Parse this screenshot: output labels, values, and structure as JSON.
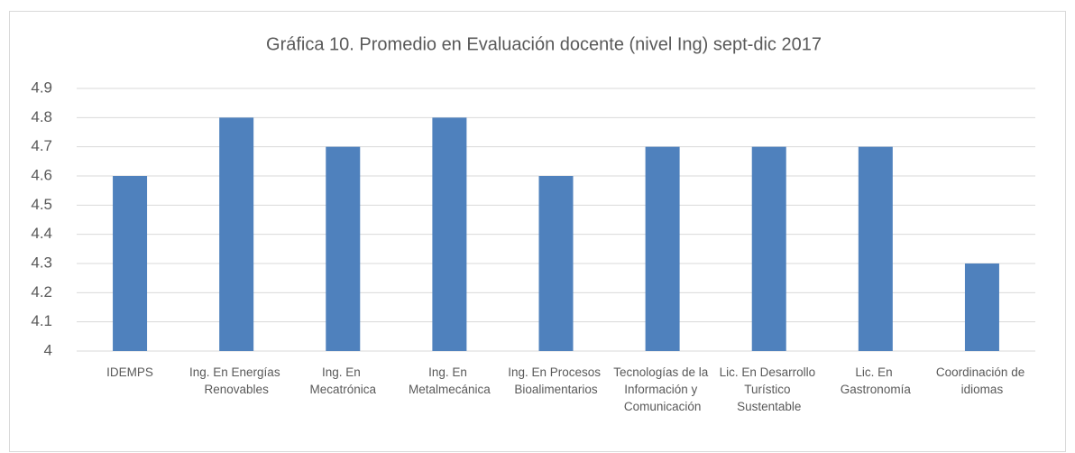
{
  "chart_data": {
    "type": "bar",
    "title": "Gráfica 10. Promedio en Evaluación docente (nivel Ing) sept-dic 2017",
    "categories": [
      "IDEMPS",
      "Ing. En Energías Renovables",
      "Ing. En Mecatrónica",
      "Ing. En Metalmecánica",
      "Ing. En Procesos Bioalimentarios",
      "Tecnologías de la Información y Comunicación",
      "Lic. En Desarrollo Turístico Sustentable",
      "Lic. En Gastronomía",
      "Coordinación de idiomas"
    ],
    "values": [
      4.6,
      4.8,
      4.7,
      4.8,
      4.6,
      4.7,
      4.7,
      4.7,
      4.3
    ],
    "color": "#4f81bd",
    "ylim": [
      4,
      4.9
    ],
    "yticks": [
      4,
      4.1,
      4.2,
      4.3,
      4.4,
      4.5,
      4.6,
      4.7,
      4.8,
      4.9
    ],
    "grid": true
  }
}
